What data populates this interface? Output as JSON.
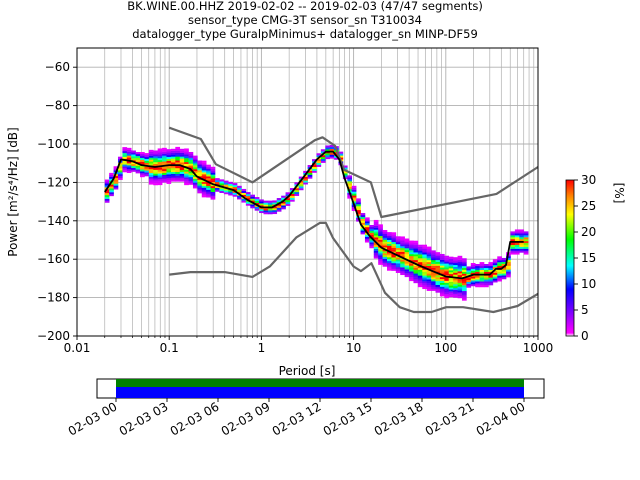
{
  "figure": {
    "title_lines": [
      "BK.WINE.00.HHZ   2019-02-02 -- 2019-02-03  (47/47 segments)",
      "sensor_type CMG-3T sensor_sn T310034",
      "datalogger_type GuralpMinimus+ datalogger_sn MINP-DF59"
    ]
  },
  "chart_data": [
    {
      "type": "heatmap",
      "title": "BK.WINE.00.HHZ   2019-02-02 -- 2019-02-03  (47/47 segments)",
      "xlabel": "Period [s]",
      "ylabel": "Power [m²/s⁴/Hz] [dB]",
      "x_scale": "log",
      "xlim": [
        0.01,
        1000
      ],
      "ylim": [
        -200,
        -50
      ],
      "x_ticks": [
        0.01,
        0.1,
        1,
        10,
        100,
        1000
      ],
      "x_tick_labels": [
        "0.01",
        "0.1",
        "1",
        "10",
        "100",
        "1000"
      ],
      "y_ticks": [
        -200,
        -180,
        -160,
        -140,
        -120,
        -100,
        -80,
        -60
      ],
      "y_tick_labels": [
        "−200",
        "−180",
        "−160",
        "−140",
        "−120",
        "−100",
        "−80",
        "−60"
      ],
      "grid": true,
      "colorbar": {
        "label": "[%]",
        "range": [
          0,
          30
        ],
        "ticks": [
          0,
          5,
          10,
          15,
          20,
          25,
          30
        ],
        "tick_labels": [
          "0",
          "5",
          "10",
          "15",
          "20",
          "25",
          "30"
        ],
        "colormap": "pqlx"
      },
      "series": [
        {
          "role": "mode",
          "color": "#000000",
          "x": [
            0.02,
            0.025,
            0.03,
            0.04,
            0.05,
            0.07,
            0.1,
            0.13,
            0.17,
            0.2,
            0.3,
            0.5,
            0.7,
            1,
            1.3,
            1.7,
            2,
            3,
            4,
            5,
            6,
            7,
            8,
            10,
            12,
            15,
            20,
            30,
            50,
            70,
            100,
            150,
            200,
            300,
            350,
            400,
            450,
            500,
            700
          ],
          "y": [
            -125,
            -118,
            -108,
            -109,
            -111,
            -112,
            -111,
            -111,
            -113,
            -117,
            -121,
            -124,
            -129,
            -133,
            -133,
            -130,
            -127,
            -116,
            -108,
            -104,
            -104,
            -108,
            -118,
            -131,
            -142,
            -148,
            -154,
            -158,
            -163,
            -166,
            -169,
            -170,
            -168,
            -168,
            -165,
            -165,
            -163,
            -151,
            -151
          ]
        },
        {
          "role": "new_high_noise_model",
          "color": "#666666",
          "x": [
            0.1,
            0.22,
            0.32,
            0.8,
            3.8,
            4.6,
            6.3,
            7.9,
            15.4,
            20,
            354.8,
            1000
          ],
          "y": [
            -91.5,
            -97.4,
            -110.5,
            -120,
            -98,
            -96.5,
            -101,
            -113.5,
            -120,
            -138,
            -126,
            -112
          ]
        },
        {
          "role": "new_low_noise_model",
          "color": "#666666",
          "x": [
            0.1,
            0.17,
            0.4,
            0.8,
            1.24,
            2.4,
            4.3,
            5,
            6,
            10,
            12,
            15.6,
            21.9,
            31.6,
            45,
            70,
            101,
            154,
            328,
            600,
            1000
          ],
          "y": [
            -168,
            -166.7,
            -166.7,
            -169.2,
            -163.7,
            -148.6,
            -141.1,
            -141.1,
            -149,
            -163.8,
            -166.2,
            -162.1,
            -177.5,
            -185,
            -187.5,
            -187.5,
            -185,
            -185,
            -187.5,
            -184.4,
            -178
          ]
        }
      ],
      "probability_density": {
        "note": "2D histogram of PSD occurrence percentage per period/power bin",
        "value_range": [
          0,
          30
        ]
      }
    },
    {
      "type": "bar",
      "role": "data_coverage",
      "x_tick_labels": [
        "02-03 00",
        "02-03 03",
        "02-03 06",
        "02-03 09",
        "02-03 12",
        "02-03 15",
        "02-03 18",
        "02-03 21",
        "02-04 00"
      ],
      "series": [
        {
          "name": "",
          "color": "#008000",
          "coverage": [
            0,
            1
          ]
        },
        {
          "name": "",
          "color": "#0000ff",
          "coverage": [
            0,
            1
          ]
        }
      ]
    }
  ]
}
